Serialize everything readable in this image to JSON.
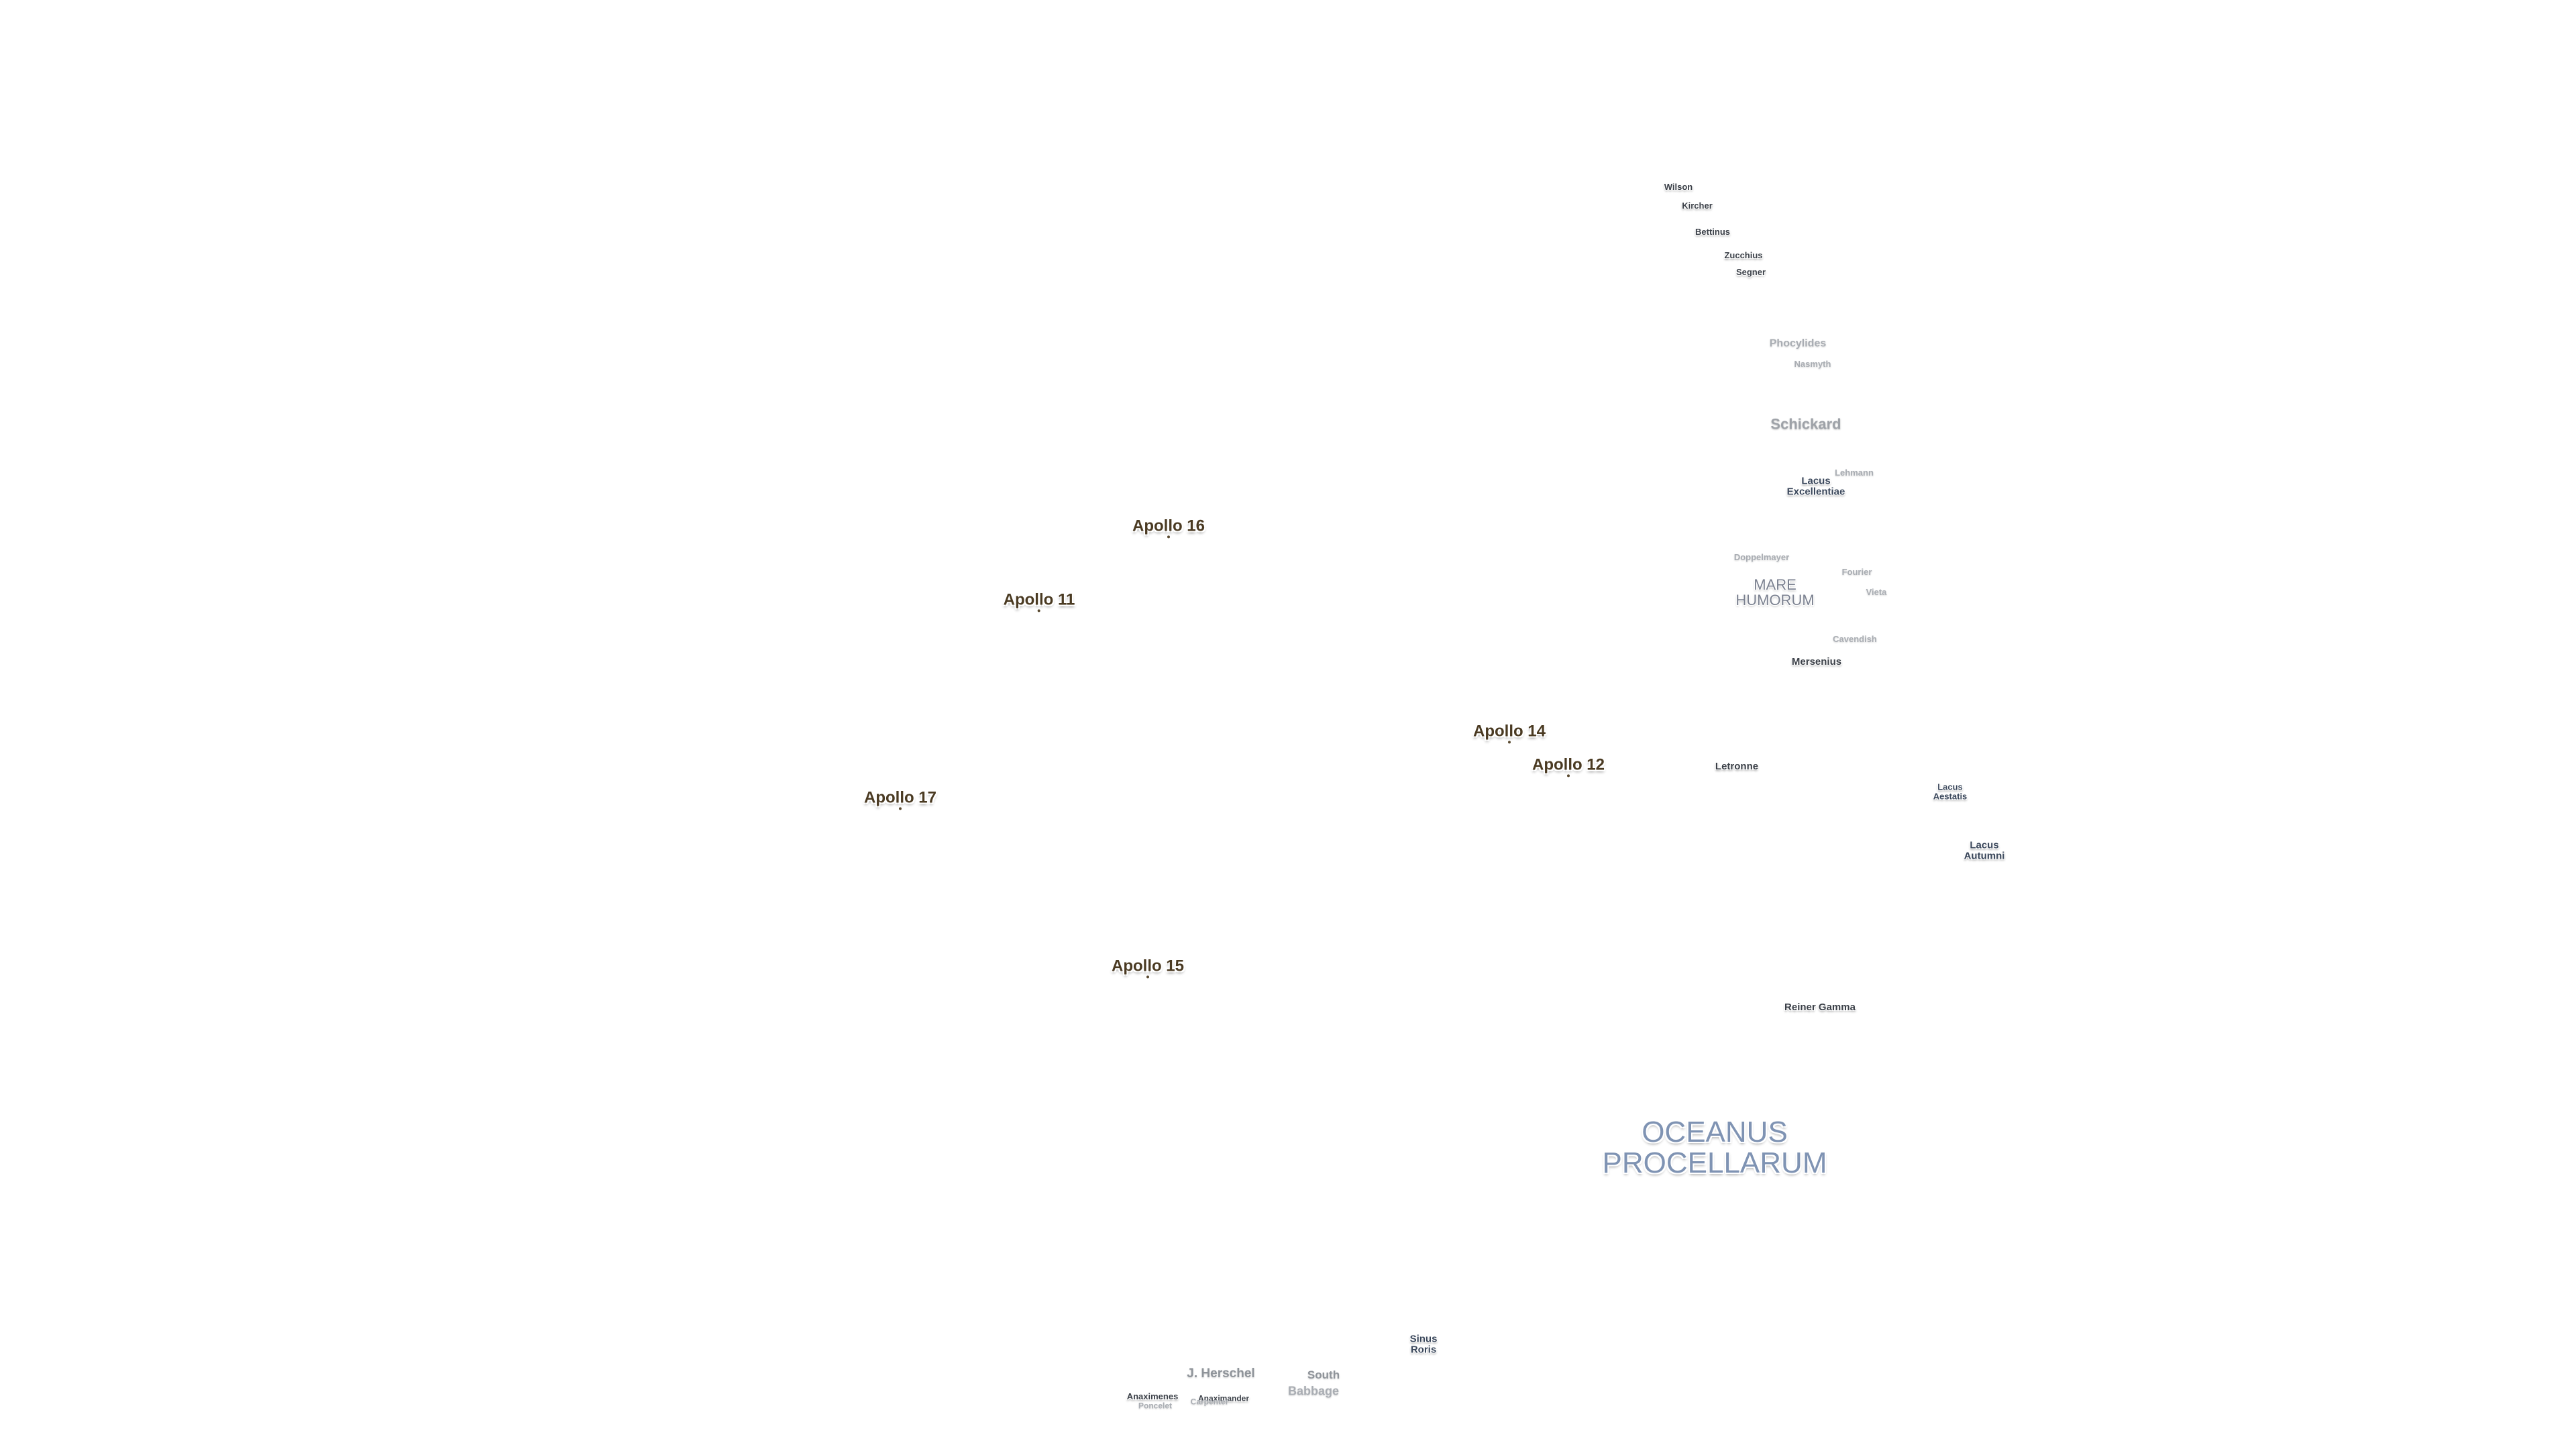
{
  "apollo_sites": [
    {
      "name": "Apollo 16"
    },
    {
      "name": "Apollo 11"
    },
    {
      "name": "Apollo 14"
    },
    {
      "name": "Apollo 12"
    },
    {
      "name": "Apollo 17"
    },
    {
      "name": "Apollo 15"
    }
  ],
  "craters": [
    {
      "name": "Wilson"
    },
    {
      "name": "Kircher"
    },
    {
      "name": "Bettinus"
    },
    {
      "name": "Zucchius"
    },
    {
      "name": "Segner"
    },
    {
      "name": "Phocylides"
    },
    {
      "name": "Nasmyth"
    },
    {
      "name": "Schickard"
    },
    {
      "name": "Lehmann"
    },
    {
      "name": "Doppelmayer"
    },
    {
      "name": "Fourier"
    },
    {
      "name": "Vieta"
    },
    {
      "name": "Cavendish"
    },
    {
      "name": "Mersenius"
    },
    {
      "name": "Letronne"
    },
    {
      "name": "Reiner Gamma"
    },
    {
      "name": "J. Herschel"
    },
    {
      "name": "South"
    },
    {
      "name": "Babbage"
    },
    {
      "name": "Anaximenes"
    },
    {
      "name": "Anaximander"
    },
    {
      "name": "Poncelet"
    },
    {
      "name": "Carpenter"
    }
  ],
  "lacus": [
    {
      "line1": "Lacus",
      "line2": "Excellentiae"
    },
    {
      "line1": "Lacus",
      "line2": "Aestatis"
    },
    {
      "line1": "Lacus",
      "line2": "Autumni"
    },
    {
      "line1": "Sinus",
      "line2": "Roris"
    }
  ],
  "maria": {
    "humorum": {
      "line1": "MARE",
      "line2": "HUMORUM"
    },
    "oceanus": {
      "line1": "OCEANUS",
      "line2": "PROCELLARUM"
    }
  }
}
